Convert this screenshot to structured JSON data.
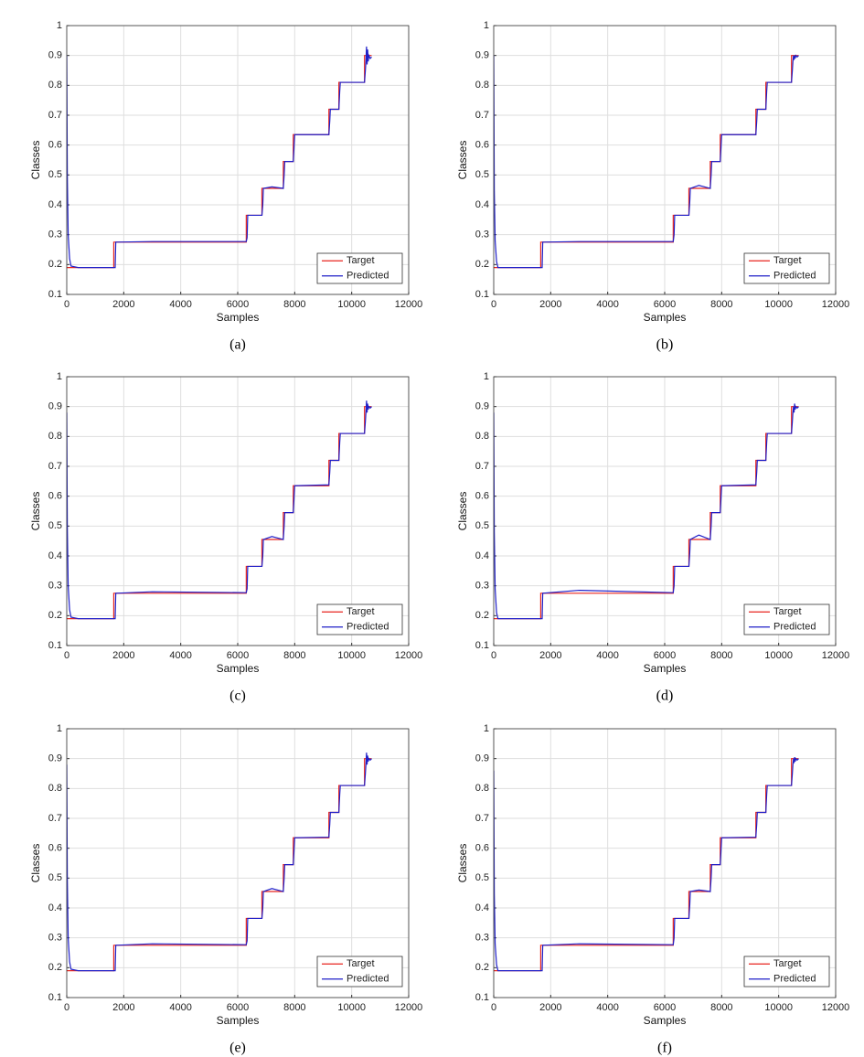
{
  "chart_data": [
    {
      "type": "line",
      "caption": "(a)",
      "xlabel": "Samples",
      "ylabel": "Classes",
      "xlim": [
        0,
        12000
      ],
      "ylim": [
        0.1,
        1
      ],
      "xticks": [
        0,
        2000,
        4000,
        6000,
        8000,
        10000,
        12000
      ],
      "yticks": [
        0.1,
        0.2,
        0.3,
        0.4,
        0.5,
        0.6,
        0.7,
        0.8,
        0.9,
        1
      ],
      "grid": true,
      "legend": "lower right",
      "series": [
        {
          "name": "Target",
          "color": "#e8251f",
          "x": [
            0,
            1650,
            1650,
            6300,
            6300,
            6850,
            6850,
            7600,
            7600,
            7950,
            7950,
            9200,
            9200,
            9550,
            9550,
            10450,
            10450,
            10700
          ],
          "values": [
            0.19,
            0.19,
            0.275,
            0.275,
            0.365,
            0.365,
            0.455,
            0.455,
            0.545,
            0.545,
            0.635,
            0.635,
            0.72,
            0.72,
            0.81,
            0.81,
            0.9,
            0.9
          ]
        },
        {
          "name": "Predicted",
          "color": "#1f1fc8",
          "x": [
            0,
            20,
            50,
            100,
            150,
            400,
            1650,
            1700,
            1720,
            3000,
            6300,
            6330,
            6350,
            6850,
            6880,
            6900,
            7200,
            7600,
            7630,
            7650,
            7950,
            7980,
            8000,
            9200,
            9230,
            9250,
            9550,
            9580,
            9600,
            10450,
            10480,
            10500,
            10520,
            10540,
            10560,
            10580,
            10600,
            10650,
            10700
          ],
          "values": [
            0.9,
            0.5,
            0.3,
            0.22,
            0.195,
            0.19,
            0.19,
            0.19,
            0.275,
            0.277,
            0.277,
            0.29,
            0.365,
            0.365,
            0.4,
            0.455,
            0.46,
            0.455,
            0.5,
            0.545,
            0.545,
            0.6,
            0.635,
            0.635,
            0.68,
            0.72,
            0.72,
            0.78,
            0.81,
            0.81,
            0.85,
            0.88,
            0.93,
            0.87,
            0.92,
            0.88,
            0.9,
            0.89,
            0.895
          ]
        }
      ]
    },
    {
      "type": "line",
      "caption": "(b)",
      "xlabel": "Samples",
      "ylabel": "Classes",
      "xlim": [
        0,
        12000
      ],
      "ylim": [
        0.1,
        1
      ],
      "xticks": [
        0,
        2000,
        4000,
        6000,
        8000,
        10000,
        12000
      ],
      "yticks": [
        0.1,
        0.2,
        0.3,
        0.4,
        0.5,
        0.6,
        0.7,
        0.8,
        0.9,
        1
      ],
      "grid": true,
      "legend": "lower right",
      "series": [
        {
          "name": "Target",
          "color": "#e8251f",
          "x": [
            0,
            1650,
            1650,
            6300,
            6300,
            6850,
            6850,
            7600,
            7600,
            7950,
            7950,
            9200,
            9200,
            9550,
            9550,
            10450,
            10450,
            10700
          ],
          "values": [
            0.19,
            0.19,
            0.275,
            0.275,
            0.365,
            0.365,
            0.455,
            0.455,
            0.545,
            0.545,
            0.635,
            0.635,
            0.72,
            0.72,
            0.81,
            0.81,
            0.9,
            0.9
          ]
        },
        {
          "name": "Predicted",
          "color": "#1f1fc8",
          "x": [
            0,
            20,
            50,
            100,
            150,
            400,
            1650,
            1700,
            1720,
            3000,
            6300,
            6330,
            6350,
            6850,
            6880,
            6900,
            7200,
            7600,
            7630,
            7650,
            7950,
            7980,
            8000,
            9200,
            9230,
            9250,
            9550,
            9580,
            9600,
            10450,
            10480,
            10500,
            10520,
            10540,
            10560,
            10580,
            10600,
            10650,
            10700
          ],
          "values": [
            0.9,
            0.45,
            0.28,
            0.21,
            0.19,
            0.19,
            0.19,
            0.19,
            0.275,
            0.277,
            0.277,
            0.3,
            0.365,
            0.365,
            0.41,
            0.455,
            0.465,
            0.455,
            0.5,
            0.545,
            0.545,
            0.6,
            0.635,
            0.635,
            0.68,
            0.72,
            0.72,
            0.78,
            0.81,
            0.81,
            0.85,
            0.88,
            0.9,
            0.885,
            0.9,
            0.89,
            0.9,
            0.895,
            0.9
          ]
        }
      ]
    },
    {
      "type": "line",
      "caption": "(c)",
      "xlabel": "Samples",
      "ylabel": "Classes",
      "xlim": [
        0,
        12000
      ],
      "ylim": [
        0.1,
        1
      ],
      "xticks": [
        0,
        2000,
        4000,
        6000,
        8000,
        10000,
        12000
      ],
      "yticks": [
        0.1,
        0.2,
        0.3,
        0.4,
        0.5,
        0.6,
        0.7,
        0.8,
        0.9,
        1
      ],
      "grid": true,
      "legend": "lower right",
      "series": [
        {
          "name": "Target",
          "color": "#e8251f",
          "x": [
            0,
            1650,
            1650,
            6300,
            6300,
            6850,
            6850,
            7600,
            7600,
            7950,
            7950,
            9200,
            9200,
            9550,
            9550,
            10450,
            10450,
            10700
          ],
          "values": [
            0.19,
            0.19,
            0.275,
            0.275,
            0.365,
            0.365,
            0.455,
            0.455,
            0.545,
            0.545,
            0.635,
            0.635,
            0.72,
            0.72,
            0.81,
            0.81,
            0.9,
            0.9
          ]
        },
        {
          "name": "Predicted",
          "color": "#1f1fc8",
          "x": [
            0,
            20,
            50,
            100,
            150,
            400,
            1650,
            1700,
            1720,
            3000,
            6300,
            6330,
            6350,
            6850,
            6880,
            6900,
            7200,
            7600,
            7630,
            7650,
            7950,
            7980,
            8000,
            9200,
            9230,
            9250,
            9550,
            9580,
            9600,
            10450,
            10480,
            10500,
            10520,
            10540,
            10560,
            10580,
            10600,
            10650,
            10700
          ],
          "values": [
            0.88,
            0.5,
            0.3,
            0.22,
            0.195,
            0.19,
            0.19,
            0.19,
            0.275,
            0.28,
            0.277,
            0.29,
            0.365,
            0.365,
            0.4,
            0.455,
            0.465,
            0.455,
            0.5,
            0.545,
            0.545,
            0.6,
            0.635,
            0.638,
            0.68,
            0.72,
            0.72,
            0.78,
            0.81,
            0.81,
            0.85,
            0.88,
            0.92,
            0.88,
            0.91,
            0.89,
            0.9,
            0.895,
            0.9
          ]
        }
      ]
    },
    {
      "type": "line",
      "caption": "(d)",
      "xlabel": "Samples",
      "ylabel": "Classes",
      "xlim": [
        0,
        12000
      ],
      "ylim": [
        0.1,
        1
      ],
      "xticks": [
        0,
        2000,
        4000,
        6000,
        8000,
        10000,
        12000
      ],
      "yticks": [
        0.1,
        0.2,
        0.3,
        0.4,
        0.5,
        0.6,
        0.7,
        0.8,
        0.9,
        1
      ],
      "grid": true,
      "legend": "lower right",
      "series": [
        {
          "name": "Target",
          "color": "#e8251f",
          "x": [
            0,
            1650,
            1650,
            6300,
            6300,
            6850,
            6850,
            7600,
            7600,
            7950,
            7950,
            9200,
            9200,
            9550,
            9550,
            10450,
            10450,
            10700
          ],
          "values": [
            0.19,
            0.19,
            0.275,
            0.275,
            0.365,
            0.365,
            0.455,
            0.455,
            0.545,
            0.545,
            0.635,
            0.635,
            0.72,
            0.72,
            0.81,
            0.81,
            0.9,
            0.9
          ]
        },
        {
          "name": "Predicted",
          "color": "#1f1fc8",
          "x": [
            0,
            20,
            50,
            100,
            150,
            400,
            1650,
            1700,
            1720,
            3000,
            6300,
            6330,
            6350,
            6850,
            6880,
            6900,
            7200,
            7600,
            7630,
            7650,
            7950,
            7980,
            8000,
            9200,
            9230,
            9250,
            9550,
            9580,
            9600,
            10450,
            10480,
            10500,
            10520,
            10540,
            10560,
            10580,
            10600,
            10650,
            10700
          ],
          "values": [
            0.88,
            0.48,
            0.29,
            0.21,
            0.19,
            0.19,
            0.19,
            0.19,
            0.275,
            0.285,
            0.277,
            0.3,
            0.365,
            0.365,
            0.41,
            0.455,
            0.47,
            0.455,
            0.5,
            0.545,
            0.545,
            0.6,
            0.635,
            0.638,
            0.68,
            0.72,
            0.72,
            0.78,
            0.81,
            0.81,
            0.85,
            0.88,
            0.9,
            0.88,
            0.91,
            0.89,
            0.9,
            0.895,
            0.9
          ]
        }
      ]
    },
    {
      "type": "line",
      "caption": "(e)",
      "xlabel": "Samples",
      "ylabel": "Classes",
      "xlim": [
        0,
        12000
      ],
      "ylim": [
        0.1,
        1
      ],
      "xticks": [
        0,
        2000,
        4000,
        6000,
        8000,
        10000,
        12000
      ],
      "yticks": [
        0.1,
        0.2,
        0.3,
        0.4,
        0.5,
        0.6,
        0.7,
        0.8,
        0.9,
        1
      ],
      "grid": true,
      "legend": "lower right",
      "series": [
        {
          "name": "Target",
          "color": "#e8251f",
          "x": [
            0,
            1650,
            1650,
            6300,
            6300,
            6850,
            6850,
            7600,
            7600,
            7950,
            7950,
            9200,
            9200,
            9550,
            9550,
            10450,
            10450,
            10700
          ],
          "values": [
            0.19,
            0.19,
            0.275,
            0.275,
            0.365,
            0.365,
            0.455,
            0.455,
            0.545,
            0.545,
            0.635,
            0.635,
            0.72,
            0.72,
            0.81,
            0.81,
            0.9,
            0.9
          ]
        },
        {
          "name": "Predicted",
          "color": "#1f1fc8",
          "x": [
            0,
            20,
            50,
            100,
            150,
            400,
            1650,
            1700,
            1720,
            3000,
            6300,
            6330,
            6350,
            6850,
            6880,
            6900,
            7200,
            7600,
            7630,
            7650,
            7950,
            7980,
            8000,
            9200,
            9230,
            9250,
            9550,
            9580,
            9600,
            10450,
            10480,
            10500,
            10520,
            10540,
            10560,
            10580,
            10600,
            10650,
            10700
          ],
          "values": [
            0.88,
            0.5,
            0.3,
            0.22,
            0.195,
            0.19,
            0.19,
            0.19,
            0.275,
            0.28,
            0.277,
            0.29,
            0.365,
            0.365,
            0.4,
            0.455,
            0.465,
            0.455,
            0.5,
            0.545,
            0.545,
            0.6,
            0.635,
            0.637,
            0.68,
            0.72,
            0.72,
            0.78,
            0.81,
            0.81,
            0.85,
            0.88,
            0.92,
            0.88,
            0.91,
            0.89,
            0.9,
            0.895,
            0.9
          ]
        }
      ]
    },
    {
      "type": "line",
      "caption": "(f)",
      "xlabel": "Samples",
      "ylabel": "Classes",
      "xlim": [
        0,
        12000
      ],
      "ylim": [
        0.1,
        1
      ],
      "xticks": [
        0,
        2000,
        4000,
        6000,
        8000,
        10000,
        12000
      ],
      "yticks": [
        0.1,
        0.2,
        0.3,
        0.4,
        0.5,
        0.6,
        0.7,
        0.8,
        0.9,
        1
      ],
      "grid": true,
      "legend": "lower right",
      "series": [
        {
          "name": "Target",
          "color": "#e8251f",
          "x": [
            0,
            1650,
            1650,
            6300,
            6300,
            6850,
            6850,
            7600,
            7600,
            7950,
            7950,
            9200,
            9200,
            9550,
            9550,
            10450,
            10450,
            10700
          ],
          "values": [
            0.19,
            0.19,
            0.275,
            0.275,
            0.365,
            0.365,
            0.455,
            0.455,
            0.545,
            0.545,
            0.635,
            0.635,
            0.72,
            0.72,
            0.81,
            0.81,
            0.9,
            0.9
          ]
        },
        {
          "name": "Predicted",
          "color": "#1f1fc8",
          "x": [
            0,
            20,
            50,
            100,
            150,
            400,
            1650,
            1700,
            1720,
            3000,
            6300,
            6330,
            6350,
            6850,
            6880,
            6900,
            7200,
            7600,
            7630,
            7650,
            7950,
            7980,
            8000,
            9200,
            9230,
            9250,
            9550,
            9580,
            9600,
            10450,
            10480,
            10500,
            10520,
            10540,
            10560,
            10580,
            10600,
            10650,
            10700
          ],
          "values": [
            0.86,
            0.45,
            0.28,
            0.21,
            0.19,
            0.19,
            0.19,
            0.19,
            0.275,
            0.28,
            0.277,
            0.3,
            0.365,
            0.365,
            0.41,
            0.455,
            0.46,
            0.455,
            0.5,
            0.545,
            0.545,
            0.6,
            0.635,
            0.637,
            0.68,
            0.72,
            0.72,
            0.78,
            0.81,
            0.81,
            0.85,
            0.88,
            0.9,
            0.885,
            0.905,
            0.89,
            0.9,
            0.895,
            0.9
          ]
        }
      ]
    }
  ]
}
